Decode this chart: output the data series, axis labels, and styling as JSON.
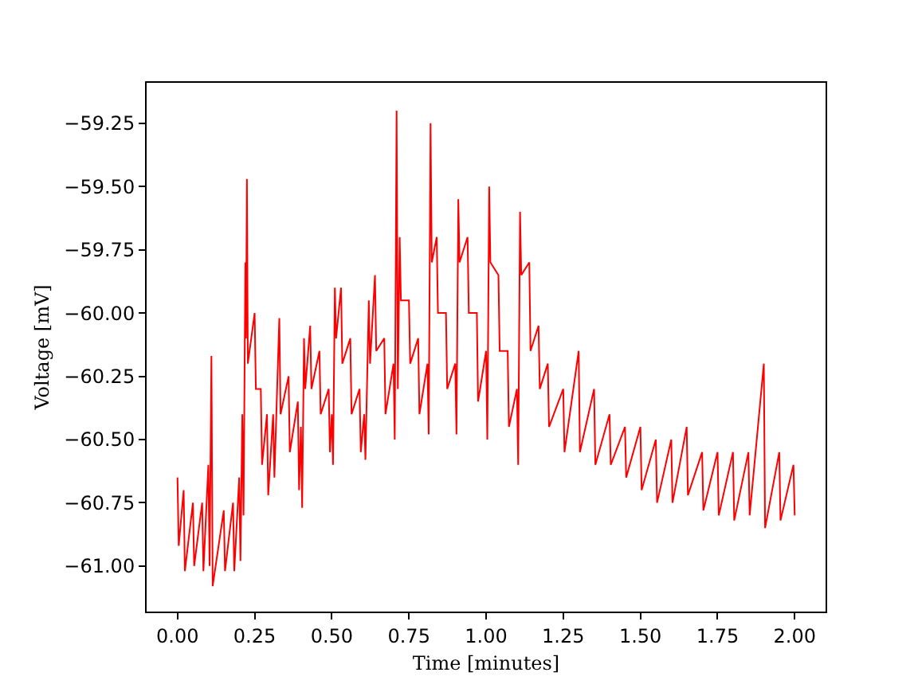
{
  "chart_data": {
    "type": "line",
    "xlabel": "Time [minutes]",
    "ylabel": "Voltage [mV]",
    "xlim": [
      -0.1,
      2.1
    ],
    "xticks": [
      {
        "value": 0,
        "label": "0.00"
      },
      {
        "value": 0.25,
        "label": "0.25"
      },
      {
        "value": 0.5,
        "label": "0.50"
      },
      {
        "value": 0.75,
        "label": "0.75"
      },
      {
        "value": 1,
        "label": "1.00"
      },
      {
        "value": 1.25,
        "label": "1.25"
      },
      {
        "value": 1.5,
        "label": "1.50"
      },
      {
        "value": 1.75,
        "label": "1.75"
      },
      {
        "value": 2,
        "label": "2.00"
      }
    ],
    "ylim": [
      -61.18,
      -59.09
    ],
    "yticks": [
      {
        "value": -61,
        "label": "−61.00"
      },
      {
        "value": -60.75,
        "label": "−60.75"
      },
      {
        "value": -60.5,
        "label": "−60.50"
      },
      {
        "value": -60.25,
        "label": "−60.25"
      },
      {
        "value": -60,
        "label": "−60.00"
      },
      {
        "value": -59.75,
        "label": "−59.75"
      },
      {
        "value": -59.5,
        "label": "−59.50"
      },
      {
        "value": -59.25,
        "label": "−59.25"
      }
    ],
    "grid": false,
    "marker": "none",
    "series": [
      {
        "color": "#ff0000",
        "x": [
          0.0,
          0.004,
          0.02,
          0.024,
          0.05,
          0.054,
          0.08,
          0.084,
          0.1,
          0.104,
          0.11,
          0.114,
          0.15,
          0.154,
          0.18,
          0.184,
          0.2,
          0.204,
          0.21,
          0.214,
          0.22,
          0.222,
          0.225,
          0.228,
          0.25,
          0.254,
          0.27,
          0.274,
          0.29,
          0.294,
          0.31,
          0.314,
          0.33,
          0.334,
          0.36,
          0.364,
          0.39,
          0.394,
          0.4,
          0.404,
          0.41,
          0.414,
          0.43,
          0.434,
          0.46,
          0.464,
          0.49,
          0.494,
          0.5,
          0.504,
          0.51,
          0.514,
          0.53,
          0.534,
          0.56,
          0.564,
          0.59,
          0.594,
          0.605,
          0.609,
          0.62,
          0.624,
          0.64,
          0.644,
          0.67,
          0.674,
          0.7,
          0.704,
          0.71,
          0.714,
          0.72,
          0.724,
          0.75,
          0.754,
          0.78,
          0.784,
          0.81,
          0.814,
          0.82,
          0.824,
          0.84,
          0.844,
          0.87,
          0.874,
          0.9,
          0.904,
          0.91,
          0.914,
          0.94,
          0.944,
          0.97,
          0.974,
          1.0,
          1.004,
          1.01,
          1.014,
          1.04,
          1.044,
          1.07,
          1.074,
          1.1,
          1.104,
          1.11,
          1.114,
          1.14,
          1.144,
          1.17,
          1.174,
          1.2,
          1.204,
          1.25,
          1.254,
          1.3,
          1.304,
          1.35,
          1.354,
          1.4,
          1.404,
          1.45,
          1.454,
          1.5,
          1.504,
          1.55,
          1.554,
          1.6,
          1.604,
          1.65,
          1.654,
          1.7,
          1.704,
          1.75,
          1.754,
          1.8,
          1.804,
          1.85,
          1.854,
          1.9,
          1.904,
          1.95,
          1.954,
          1.996,
          2.0
        ],
        "values": [
          -60.65,
          -60.92,
          -60.7,
          -61.02,
          -60.75,
          -61.0,
          -60.75,
          -61.02,
          -60.6,
          -61.0,
          -60.17,
          -61.08,
          -60.78,
          -61.02,
          -60.75,
          -61.02,
          -60.65,
          -60.98,
          -60.4,
          -60.8,
          -59.8,
          -60.1,
          -59.47,
          -60.2,
          -60.0,
          -60.3,
          -60.3,
          -60.6,
          -60.4,
          -60.72,
          -60.4,
          -60.65,
          -60.02,
          -60.4,
          -60.25,
          -60.55,
          -60.35,
          -60.7,
          -60.45,
          -60.77,
          -60.1,
          -60.3,
          -60.05,
          -60.3,
          -60.15,
          -60.4,
          -60.3,
          -60.55,
          -60.4,
          -60.6,
          -59.9,
          -60.1,
          -59.9,
          -60.2,
          -60.1,
          -60.4,
          -60.3,
          -60.55,
          -60.4,
          -60.58,
          -59.95,
          -60.2,
          -59.85,
          -60.15,
          -60.1,
          -60.4,
          -60.2,
          -60.5,
          -59.2,
          -60.3,
          -59.7,
          -59.95,
          -59.95,
          -60.2,
          -60.1,
          -60.4,
          -60.2,
          -60.48,
          -59.25,
          -59.8,
          -59.7,
          -60.0,
          -60.0,
          -60.3,
          -60.2,
          -60.48,
          -59.55,
          -59.8,
          -59.7,
          -60.0,
          -60.0,
          -60.35,
          -60.15,
          -60.5,
          -59.5,
          -59.8,
          -59.85,
          -60.15,
          -60.15,
          -60.45,
          -60.3,
          -60.6,
          -59.6,
          -59.85,
          -59.8,
          -60.15,
          -60.05,
          -60.3,
          -60.2,
          -60.45,
          -60.3,
          -60.55,
          -60.15,
          -60.55,
          -60.3,
          -60.6,
          -60.4,
          -60.6,
          -60.45,
          -60.65,
          -60.45,
          -60.7,
          -60.5,
          -60.75,
          -60.5,
          -60.75,
          -60.45,
          -60.72,
          -60.55,
          -60.78,
          -60.55,
          -60.8,
          -60.55,
          -60.82,
          -60.55,
          -60.8,
          -60.2,
          -60.85,
          -60.55,
          -60.82,
          -60.6,
          -60.8
        ]
      }
    ]
  }
}
